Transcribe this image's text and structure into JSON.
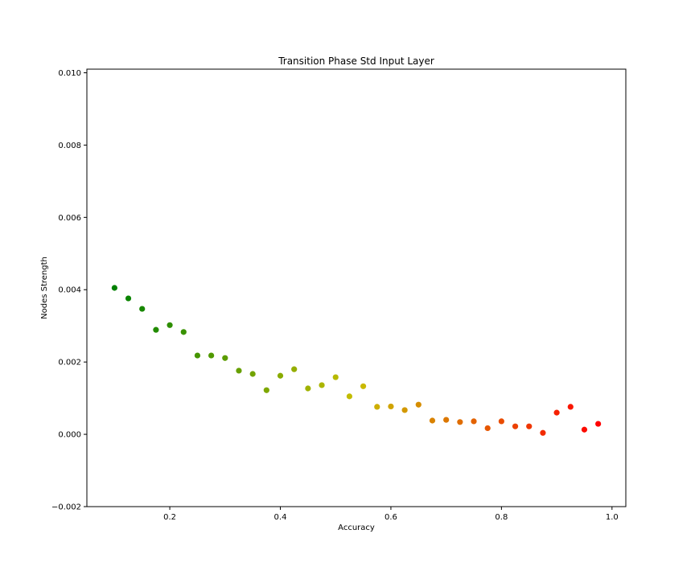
{
  "chart_data": {
    "type": "scatter",
    "title": "Transition Phase Std Input Layer",
    "xlabel": "Accuracy",
    "ylabel": "Nodes Strength",
    "xlim": [
      0.05,
      1.025
    ],
    "ylim": [
      -0.002,
      0.0101
    ],
    "xticks": [
      0.2,
      0.4,
      0.6,
      0.8,
      1.0
    ],
    "xtick_labels": [
      "0.2",
      "0.4",
      "0.6",
      "0.8",
      "1.0"
    ],
    "yticks": [
      -0.002,
      0.0,
      0.002,
      0.004,
      0.006,
      0.008,
      0.01
    ],
    "ytick_labels": [
      "−0.002",
      "0.000",
      "0.002",
      "0.004",
      "0.006",
      "0.008",
      "0.010"
    ],
    "grid": false,
    "color_start": "#008000",
    "color_end": "#ff0000",
    "x": [
      0.1,
      0.125,
      0.15,
      0.175,
      0.2,
      0.225,
      0.25,
      0.275,
      0.3,
      0.325,
      0.35,
      0.375,
      0.4,
      0.425,
      0.45,
      0.475,
      0.5,
      0.525,
      0.55,
      0.575,
      0.6,
      0.625,
      0.65,
      0.675,
      0.7,
      0.725,
      0.75,
      0.775,
      0.8,
      0.825,
      0.85,
      0.875,
      0.9,
      0.925,
      0.95,
      0.975
    ],
    "y": [
      0.00405,
      0.00376,
      0.00347,
      0.00289,
      0.00302,
      0.00283,
      0.00218,
      0.00218,
      0.00211,
      0.00176,
      0.00167,
      0.00122,
      0.00162,
      0.0018,
      0.00127,
      0.00136,
      0.00158,
      0.00105,
      0.00133,
      0.00076,
      0.00077,
      0.00067,
      0.00082,
      0.00038,
      0.0004,
      0.00034,
      0.00036,
      0.00017,
      0.00036,
      0.00022,
      0.00022,
      4e-05,
      0.0006,
      0.00076,
      0.00013,
      0.00029
    ]
  }
}
